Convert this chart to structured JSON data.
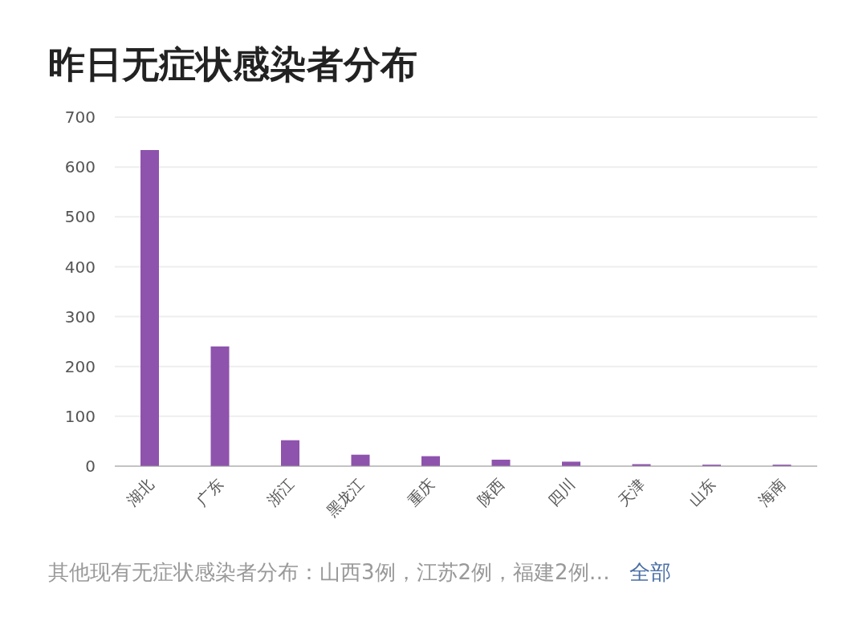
{
  "chart_data": {
    "type": "bar",
    "title": "昨日无症状感染者分布",
    "categories": [
      "湖北",
      "广东",
      "浙江",
      "黑龙江",
      "重庆",
      "陕西",
      "四川",
      "天津",
      "山东",
      "海南"
    ],
    "values": [
      634,
      240,
      52,
      23,
      20,
      13,
      9,
      4,
      3,
      3
    ],
    "color": "#8e53ad",
    "ylim": [
      0,
      700
    ],
    "yticks": [
      0,
      100,
      200,
      300,
      400,
      500,
      600,
      700
    ],
    "grid": "y",
    "annotations": [
      "其他现有无症状感染者分布：山西3例，江苏2例，福建2例…",
      "全部"
    ]
  }
}
